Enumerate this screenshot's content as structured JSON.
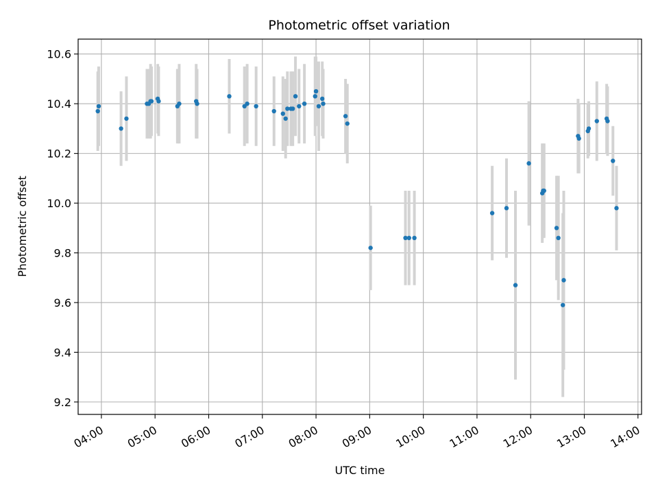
{
  "chart_data": {
    "type": "scatter",
    "title": "Photometric offset variation",
    "xlabel": "UTC time",
    "ylabel": "Photometric offset",
    "xlim": [
      "03:34",
      "14:04"
    ],
    "ylim": [
      9.15,
      10.66
    ],
    "grid": true,
    "x_ticks": [
      "04:00",
      "05:00",
      "06:00",
      "07:00",
      "08:00",
      "09:00",
      "10:00",
      "11:00",
      "12:00",
      "13:00",
      "14:00"
    ],
    "y_ticks": [
      "9.2",
      "9.4",
      "9.6",
      "9.8",
      "10.0",
      "10.2",
      "10.4",
      "10.6"
    ],
    "colors": {
      "points": "#1f77b4",
      "error_bars": "#d3d3d3",
      "grid": "#b0b0b0"
    },
    "x": [
      "03:56",
      "03:57",
      "04:22",
      "04:28",
      "04:51",
      "04:53",
      "04:55",
      "04:56",
      "05:03",
      "05:04",
      "05:25",
      "05:27",
      "05:46",
      "05:47",
      "06:23",
      "06:40",
      "06:43",
      "06:53",
      "07:13",
      "07:23",
      "07:26",
      "07:28",
      "07:32",
      "07:34",
      "07:37",
      "07:41",
      "07:47",
      "07:59",
      "08:00",
      "08:03",
      "08:07",
      "08:08",
      "08:33",
      "08:35",
      "09:01",
      "09:40",
      "09:44",
      "09:50",
      "11:17",
      "11:33",
      "11:43",
      "11:58",
      "12:13",
      "12:14",
      "12:15",
      "12:29",
      "12:31",
      "12:36",
      "12:37",
      "12:53",
      "12:54",
      "13:04",
      "13:05",
      "13:14",
      "13:25",
      "13:26",
      "13:32",
      "13:36"
    ],
    "y": [
      10.37,
      10.39,
      10.3,
      10.34,
      10.4,
      10.4,
      10.41,
      10.41,
      10.42,
      10.41,
      10.39,
      10.4,
      10.41,
      10.4,
      10.43,
      10.39,
      10.4,
      10.39,
      10.37,
      10.36,
      10.34,
      10.38,
      10.38,
      10.38,
      10.43,
      10.39,
      10.4,
      10.43,
      10.45,
      10.39,
      10.42,
      10.4,
      10.35,
      10.32,
      9.82,
      9.86,
      9.86,
      9.86,
      9.96,
      9.98,
      9.67,
      10.16,
      10.04,
      10.05,
      10.05,
      9.9,
      9.86,
      9.59,
      9.69,
      10.27,
      10.26,
      10.29,
      10.3,
      10.33,
      10.34,
      10.33,
      10.17,
      9.98
    ],
    "yerr": [
      0.16,
      0.16,
      0.15,
      0.17,
      0.14,
      0.14,
      0.15,
      0.14,
      0.14,
      0.14,
      0.15,
      0.16,
      0.15,
      0.14,
      0.15,
      0.16,
      0.16,
      0.16,
      0.14,
      0.15,
      0.16,
      0.15,
      0.15,
      0.15,
      0.16,
      0.15,
      0.16,
      0.16,
      0.14,
      0.18,
      0.15,
      0.14,
      0.15,
      0.16,
      0.17,
      0.19,
      0.19,
      0.19,
      0.19,
      0.2,
      0.38,
      0.25,
      0.2,
      0.19,
      0.19,
      0.21,
      0.25,
      0.37,
      0.36,
      0.15,
      0.14,
      0.11,
      0.11,
      0.16,
      0.14,
      0.14,
      0.14,
      0.17
    ]
  }
}
